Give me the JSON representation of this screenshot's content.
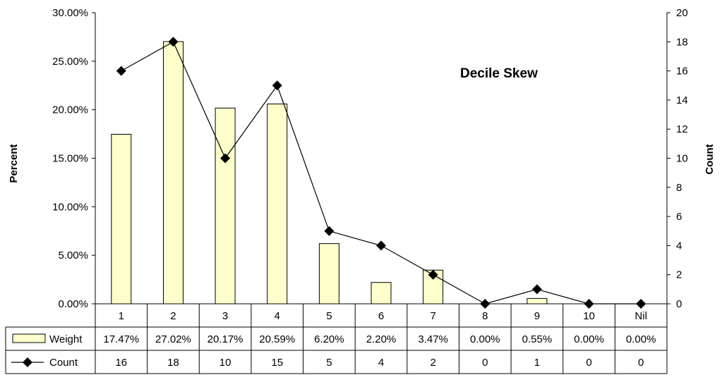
{
  "chart_data": {
    "type": "bar",
    "title": "Decile Skew",
    "xlabel": "",
    "ylabel": "Percent",
    "y2label": "Count",
    "categories": [
      "1",
      "2",
      "3",
      "4",
      "5",
      "6",
      "7",
      "8",
      "9",
      "10",
      "Nil"
    ],
    "series": [
      {
        "name": "Weight",
        "type": "bar",
        "axis": "left",
        "values": [
          17.47,
          27.02,
          20.17,
          20.59,
          6.2,
          2.2,
          3.47,
          0.0,
          0.55,
          0.0,
          0.0
        ],
        "labels": [
          "17.47%",
          "27.02%",
          "20.17%",
          "20.59%",
          "6.20%",
          "2.20%",
          "3.47%",
          "0.00%",
          "0.55%",
          "0.00%",
          "0.00%"
        ],
        "color": "#FFFFCC"
      },
      {
        "name": "Count",
        "type": "line",
        "axis": "right",
        "values": [
          16,
          18,
          10,
          15,
          5,
          4,
          2,
          0,
          1,
          0,
          0
        ],
        "labels": [
          "16",
          "18",
          "10",
          "15",
          "5",
          "4",
          "2",
          "0",
          "1",
          "0",
          "0"
        ],
        "color": "#000000"
      }
    ],
    "ylim": [
      0,
      30
    ],
    "y2lim": [
      0,
      20
    ],
    "yticks": [
      "0.00%",
      "5.00%",
      "10.00%",
      "15.00%",
      "20.00%",
      "25.00%",
      "30.00%"
    ],
    "y2ticks": [
      "0",
      "2",
      "4",
      "6",
      "8",
      "10",
      "12",
      "14",
      "16",
      "18",
      "20"
    ],
    "grid": false,
    "legend": "data-table"
  }
}
